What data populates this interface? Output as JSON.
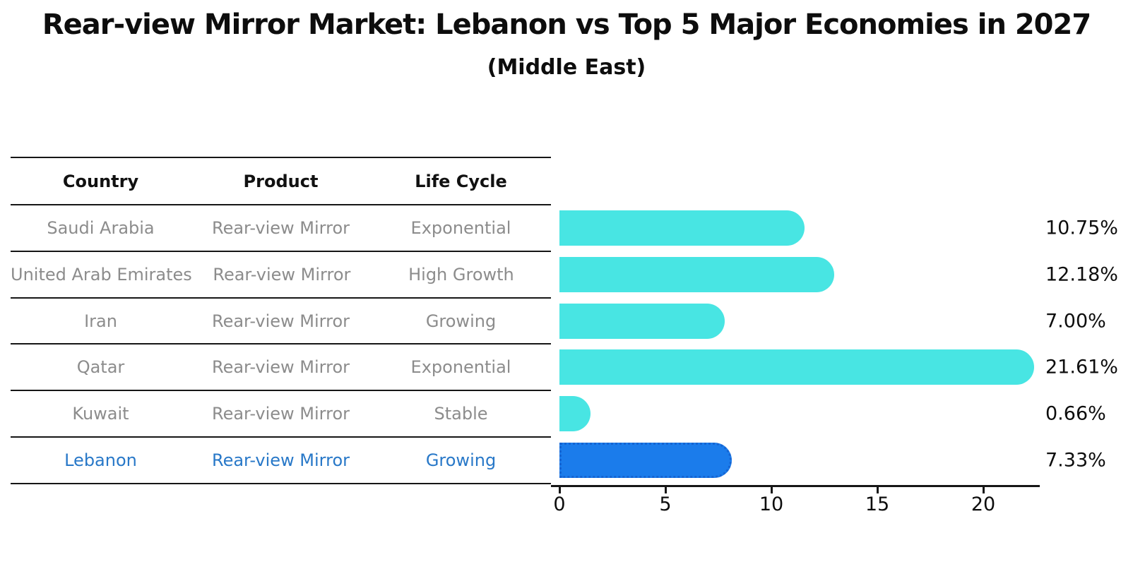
{
  "title": "Rear-view Mirror Market: Lebanon vs Top 5 Major Economies in 2027",
  "subtitle": "(Middle East)",
  "table": {
    "headers": [
      "Country",
      "Product",
      "Life Cycle"
    ],
    "rows": [
      {
        "country": "Saudi Arabia",
        "product": "Rear-view Mirror",
        "life_cycle": "Exponential",
        "highlight": false
      },
      {
        "country": "United Arab Emirates",
        "product": "Rear-view Mirror",
        "life_cycle": "High Growth",
        "highlight": false
      },
      {
        "country": "Iran",
        "product": "Rear-view Mirror",
        "life_cycle": "Growing",
        "highlight": false
      },
      {
        "country": "Qatar",
        "product": "Rear-view Mirror",
        "life_cycle": "Exponential",
        "highlight": false
      },
      {
        "country": "Kuwait",
        "product": "Rear-view Mirror",
        "life_cycle": "Stable",
        "highlight": false
      },
      {
        "country": "Lebanon",
        "product": "Rear-view Mirror",
        "life_cycle": "Growing",
        "highlight": true
      }
    ]
  },
  "chart_data": {
    "type": "bar",
    "orientation": "horizontal",
    "title": "Rear-view Mirror Market: Lebanon vs Top 5 Major Economies in 2027",
    "subtitle": "(Middle East)",
    "categories": [
      "Saudi Arabia",
      "United Arab Emirates",
      "Iran",
      "Qatar",
      "Kuwait",
      "Lebanon"
    ],
    "values": [
      10.75,
      12.18,
      7.0,
      21.61,
      0.66,
      7.33
    ],
    "value_labels": [
      "10.75%",
      "12.18%",
      "7.00%",
      "21.61%",
      "0.66%",
      "7.33%"
    ],
    "highlight_index": 5,
    "x_ticks": [
      0,
      5,
      10,
      15,
      20
    ],
    "xlim": [
      0,
      22.6
    ],
    "grid": false,
    "legend_position": "none"
  },
  "colors": {
    "bar": "#48E5E3",
    "highlight_bar": "#1B7CEB",
    "highlight_bar_border": "#1564D2",
    "highlight_text": "#2878C8",
    "table_text": "#8C8C8C",
    "heading_text": "#0D0D0D",
    "axis": "#161616"
  }
}
